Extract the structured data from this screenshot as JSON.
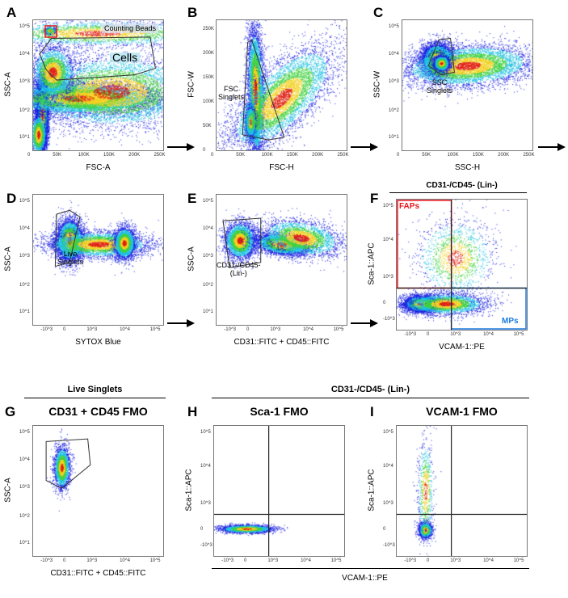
{
  "panels": [
    {
      "id": "A",
      "xlabel": "FSC-A",
      "ylabel": "SSC-A",
      "xscale": "linear",
      "yscale": "log",
      "xticks": [
        "0",
        "50K",
        "100K",
        "150K",
        "200K",
        "250K"
      ],
      "yticks": [
        "10^1",
        "10^2",
        "10^3",
        "10^4",
        "10^5"
      ],
      "gates": [
        "Counting Beads",
        "Cells"
      ]
    },
    {
      "id": "B",
      "xlabel": "FSC-H",
      "ylabel": "FSC-W",
      "xscale": "linear",
      "yscale": "linear",
      "xticks": [
        "0",
        "50K",
        "100K",
        "150K",
        "200K",
        "250K"
      ],
      "yticks": [
        "0",
        "50K",
        "100K",
        "150K",
        "200K",
        "250K"
      ],
      "gates": [
        "FSC\nSinglets"
      ]
    },
    {
      "id": "C",
      "xlabel": "SSC-H",
      "ylabel": "SSC-W",
      "xscale": "linear",
      "yscale": "log",
      "xticks": [
        "0",
        "50K",
        "100K",
        "150K",
        "200K",
        "250K"
      ],
      "yticks": [
        "10^1",
        "10^2",
        "10^3",
        "10^4",
        "10^5"
      ],
      "gates": [
        "SSC\nSinglets"
      ]
    },
    {
      "id": "D",
      "xlabel": "SYTOX Blue",
      "ylabel": "SSC-A",
      "xscale": "biexponential",
      "yscale": "log",
      "xticks": [
        "-10^3",
        "0",
        "10^3",
        "10^4",
        "10^5"
      ],
      "yticks": [
        "10^1",
        "10^2",
        "10^3",
        "10^4",
        "10^5"
      ],
      "gates": [
        "Live\nSinglets"
      ]
    },
    {
      "id": "E",
      "xlabel": "CD31::FITC + CD45::FITC",
      "ylabel": "SSC-A",
      "xscale": "biexponential",
      "yscale": "log",
      "xticks": [
        "-10^3",
        "0",
        "10^3",
        "10^4",
        "10^5"
      ],
      "yticks": [
        "10^1",
        "10^2",
        "10^3",
        "10^4",
        "10^5"
      ],
      "gates": [
        "CD31-/CD45-\n(Lin-)"
      ]
    },
    {
      "id": "F",
      "xlabel": "VCAM-1::PE",
      "ylabel": "Sca-1::APC",
      "xscale": "biexponential",
      "yscale": "biexponential",
      "xticks": [
        "-10^3",
        "0",
        "10^3",
        "10^4",
        "10^5"
      ],
      "yticks": [
        "-10^3",
        "0",
        "10^3",
        "10^4",
        "10^5"
      ],
      "gates": [
        "FAPs",
        "MPs"
      ],
      "header": "CD31-/CD45- (Lin-)"
    },
    {
      "id": "G",
      "xlabel": "CD31::FITC + CD45::FITC",
      "ylabel": "SSC-A",
      "xscale": "biexponential",
      "yscale": "log",
      "xticks": [
        "-10^3",
        "0",
        "10^3",
        "10^4",
        "10^5"
      ],
      "yticks": [
        "10^1",
        "10^2",
        "10^3",
        "10^4",
        "10^5"
      ],
      "gates": [],
      "title": "CD31 + CD45 FMO"
    },
    {
      "id": "H",
      "xlabel": "",
      "ylabel": "Sca-1::APC",
      "xscale": "biexponential",
      "yscale": "biexponential",
      "xticks": [
        "-10^3",
        "0",
        "10^3",
        "10^4",
        "10^5"
      ],
      "yticks": [
        "-10^3",
        "0",
        "10^3",
        "10^4",
        "10^5"
      ],
      "gates": [],
      "title": "Sca-1 FMO"
    },
    {
      "id": "I",
      "xlabel": "",
      "ylabel": "Sca-1::APC",
      "xscale": "biexponential",
      "yscale": "biexponential",
      "xticks": [
        "-10^3",
        "0",
        "10^3",
        "10^4",
        "10^5"
      ],
      "yticks": [
        "-10^3",
        "0",
        "10^3",
        "10^4",
        "10^5"
      ],
      "gates": [],
      "title": "VCAM-1 FMO"
    }
  ],
  "group_headers": {
    "live_singlets": "Live Singlets",
    "lin_neg": "CD31-/CD45- (Lin-)",
    "shared_xlabel": "VCAM-1::PE"
  },
  "colors": {
    "gate": "#333333",
    "faps": "#e8141c",
    "mps": "#1e7be0",
    "beads": "#e8141c"
  }
}
